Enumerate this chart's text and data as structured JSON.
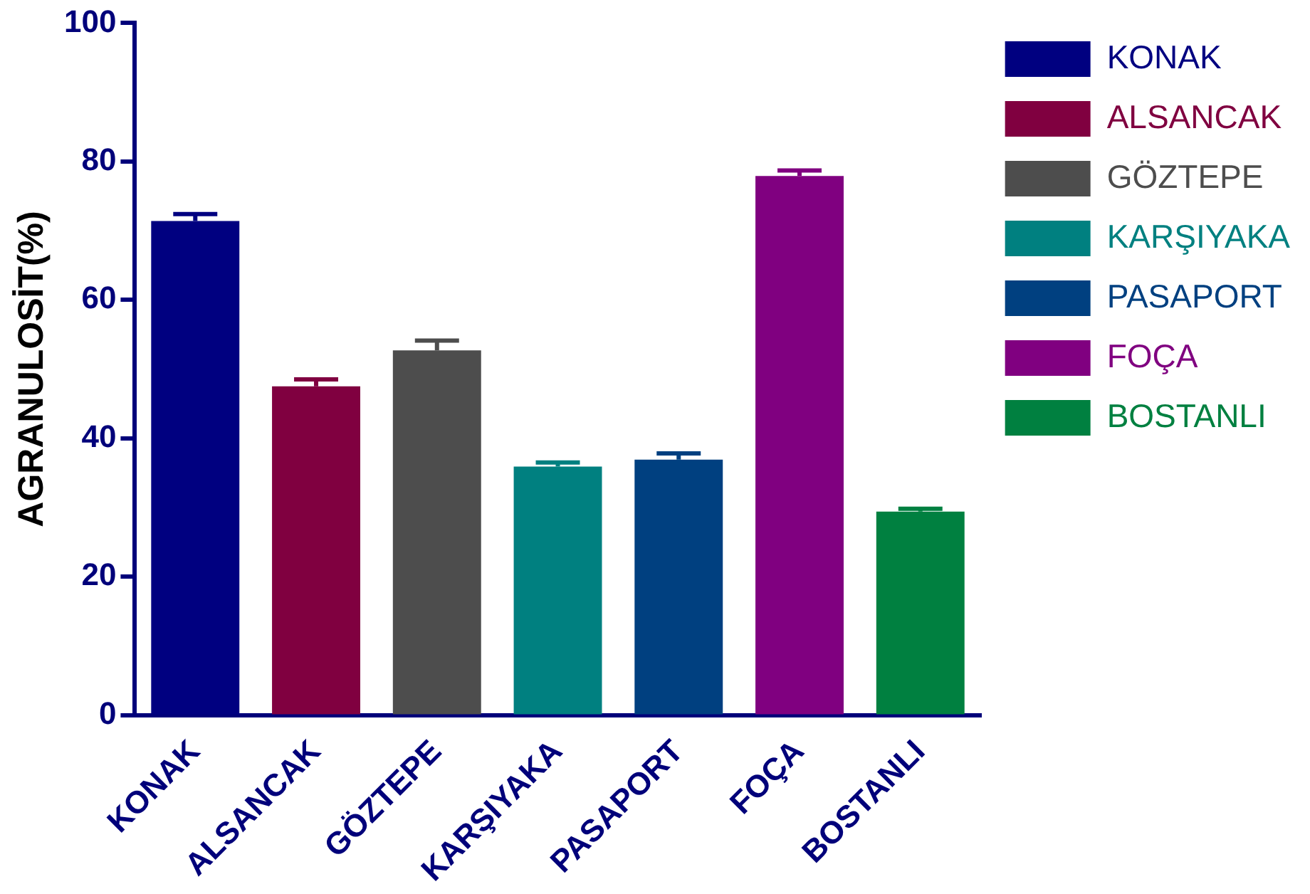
{
  "chart_data": {
    "type": "bar",
    "ylabel": "AGRANULOSİT(%)",
    "categories": [
      "KONAK",
      "ALSANCAK",
      "GÖZTEPE",
      "KARŞIYAKA",
      "PASAPORT",
      "FOÇA",
      "BOSTANLI"
    ],
    "series": [
      {
        "name": "KONAK",
        "color": "#000080",
        "values": [
          71.4,
          null,
          null,
          null,
          null,
          null,
          null
        ],
        "errors": [
          [
            71.4,
            72.4
          ],
          null,
          null,
          null,
          null,
          null,
          null
        ]
      },
      {
        "name": "ALSANCAK",
        "color": "#800040",
        "values": [
          null,
          47.5,
          null,
          null,
          null,
          null,
          null
        ],
        "errors": [
          null,
          [
            47.5,
            48.5
          ],
          null,
          null,
          null,
          null,
          null
        ]
      },
      {
        "name": "GÖZTEPE",
        "color": "#4d4d4d",
        "values": [
          null,
          null,
          52.7,
          null,
          null,
          null,
          null
        ],
        "errors": [
          null,
          null,
          [
            52.7,
            54.1
          ],
          null,
          null,
          null,
          null
        ]
      },
      {
        "name": "KARŞIYAKA",
        "color": "#008080",
        "values": [
          null,
          null,
          null,
          35.9,
          null,
          null,
          null
        ],
        "errors": [
          null,
          null,
          null,
          [
            35.9,
            36.5
          ],
          null,
          null,
          null
        ]
      },
      {
        "name": "PASAPORT",
        "color": "#004080",
        "values": [
          null,
          null,
          null,
          null,
          36.9,
          null,
          null
        ],
        "errors": [
          null,
          null,
          null,
          null,
          [
            36.9,
            37.8
          ],
          null,
          null
        ]
      },
      {
        "name": "FOÇA",
        "color": "#800080",
        "values": [
          null,
          null,
          null,
          null,
          null,
          77.9,
          null
        ],
        "errors": [
          null,
          null,
          null,
          null,
          null,
          [
            77.9,
            78.7
          ],
          null
        ]
      },
      {
        "name": "BOSTANLI",
        "color": "#008040",
        "values": [
          null,
          null,
          null,
          null,
          null,
          null,
          29.4
        ],
        "errors": [
          null,
          null,
          null,
          null,
          null,
          null,
          [
            29.4,
            29.8
          ]
        ]
      }
    ],
    "ylim": [
      0,
      100
    ],
    "yticks": [
      0,
      20,
      40,
      60,
      80,
      100
    ],
    "grid": false,
    "legend": "right"
  }
}
